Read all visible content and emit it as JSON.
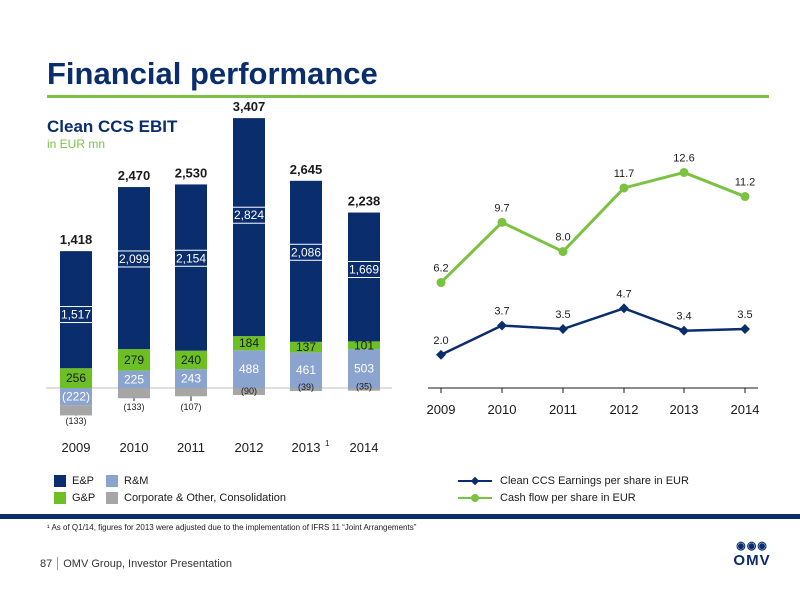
{
  "page": {
    "title": "Financial performance",
    "subtitle": "Clean CCS EBIT",
    "unit": "in EUR mn",
    "footnote": "¹ As of Q1/14, figures for 2013 were adjusted due to the implementation of IFRS 11 “Joint Arrangements”",
    "page_number": "87",
    "footer_text": "OMV Group, Investor Presentation",
    "logo_text": "OMV",
    "logo_ring_text": "◉◉◉"
  },
  "colors": {
    "ep": "#0a2d6e",
    "rm": "#8aa3cf",
    "gp": "#6cc024",
    "corp": "#a6a6a6",
    "eps_line": "#0a2d6e",
    "cf_line": "#7cc242",
    "title": "#0a2d6e"
  },
  "legend": {
    "ep": "E&P",
    "rm": "R&M",
    "gp": "G&P",
    "corp": "Corporate & Other, Consolidation",
    "eps": "Clean CCS Earnings per share in EUR",
    "cf": "Cash flow per share in EUR"
  },
  "chart_data": [
    {
      "type": "bar",
      "stacked": true,
      "categories": [
        "2009",
        "2010",
        "2011",
        "2012",
        "2013",
        "2014"
      ],
      "category_superscripts": [
        "",
        "",
        "",
        "",
        "1",
        ""
      ],
      "series": [
        {
          "name": "E&P",
          "values": [
            1517,
            2099,
            2154,
            2824,
            2086,
            1669
          ]
        },
        {
          "name": "G&P",
          "values": [
            256,
            279,
            240,
            184,
            137,
            101
          ]
        },
        {
          "name": "R&M",
          "values": [
            -222,
            225,
            243,
            488,
            461,
            503
          ]
        },
        {
          "name": "Corporate & Other, Consolidation",
          "values": [
            -133,
            -133,
            -107,
            -90,
            -39,
            -35
          ]
        }
      ],
      "value_labels": {
        "E&P": [
          "1,517",
          "2,099",
          "2,154",
          "2,824",
          "2,086",
          "1,669"
        ],
        "G&P": [
          "256",
          "279",
          "240",
          "184",
          "137",
          "101"
        ],
        "R&M": [
          "(222)",
          "225",
          "243",
          "488",
          "461",
          "503"
        ],
        "Corporate & Other, Consolidation": [
          "(133)",
          "(133)",
          "(107)",
          "(90)",
          "(39)",
          "(35)"
        ]
      },
      "totals": [
        1418,
        2470,
        2530,
        3407,
        2645,
        2238
      ],
      "total_labels": [
        "1,418",
        "2,470",
        "2,530",
        "3,407",
        "2,645",
        "2,238"
      ],
      "ylim": [
        -400,
        3600
      ]
    },
    {
      "type": "line",
      "x": [
        "2009",
        "2010",
        "2011",
        "2012",
        "2013",
        "2014"
      ],
      "series": [
        {
          "name": "Cash flow per share in EUR",
          "values": [
            6.2,
            9.7,
            8.0,
            11.7,
            12.6,
            11.2
          ],
          "labels": [
            "6.2",
            "9.7",
            "8.0",
            "11.7",
            "12.6",
            "11.2"
          ]
        },
        {
          "name": "Clean CCS Earnings per share in EUR",
          "values": [
            2.0,
            3.7,
            3.5,
            4.7,
            3.4,
            3.5
          ],
          "labels": [
            "2.0",
            "3.7",
            "3.5",
            "4.7",
            "3.4",
            "3.5"
          ]
        }
      ],
      "ylim": [
        0,
        14
      ],
      "legend": "bottom"
    }
  ]
}
